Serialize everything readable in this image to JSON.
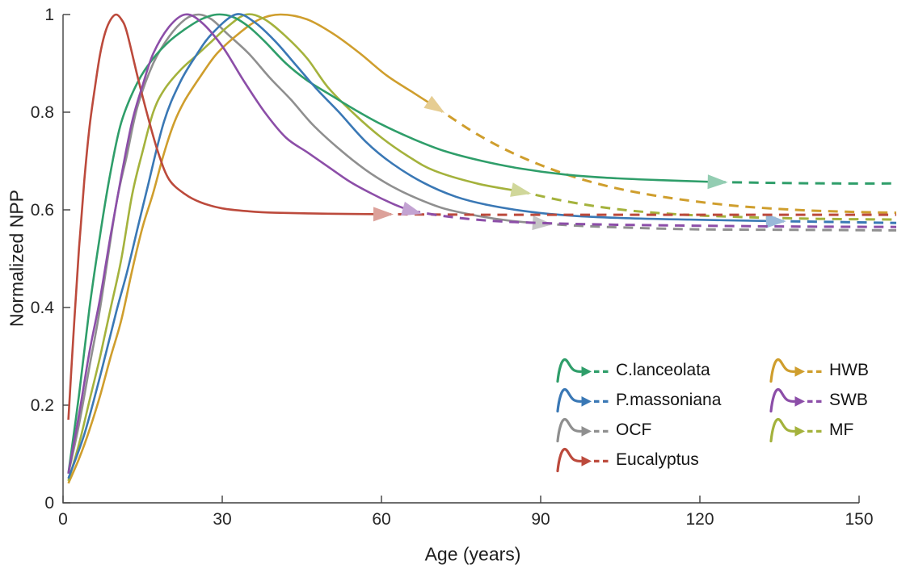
{
  "figure": {
    "xlabel": "Age (years)",
    "ylabel": "Normalized NPP",
    "background": "#ffffff",
    "axis_color": "#3f3f3f",
    "tick_text_color": "#262626"
  },
  "chart_data": {
    "type": "line",
    "title": "",
    "xlabel": "Age (years)",
    "ylabel": "Normalized NPP",
    "xlim": [
      0,
      150
    ],
    "ylim": [
      0,
      1
    ],
    "xticks": [
      0,
      30,
      60,
      90,
      120,
      150
    ],
    "xtick_labels": [
      "0",
      "30",
      "60",
      "90",
      "120",
      "150"
    ],
    "yticks": [
      0,
      0.2,
      0.4,
      0.6,
      0.8,
      1
    ],
    "ytick_labels": [
      "0",
      "0.2",
      "0.4",
      "0.6",
      "0.8",
      "1"
    ],
    "grid": false,
    "legend_position": "lower right",
    "style_note": "Each curve is solid up to a semi-transparent right-pointing arrow marker, then dashed (extrapolated) beyond it; curves extend slightly past age 150.",
    "series": [
      {
        "name": "C.lanceolata",
        "color": "#2f9e6a",
        "peak_age": 29,
        "arrow": [
          123,
          0.657
        ],
        "final_value": 0.654,
        "points": [
          [
            1,
            0.06
          ],
          [
            3,
            0.22
          ],
          [
            5,
            0.4
          ],
          [
            7,
            0.55
          ],
          [
            9,
            0.68
          ],
          [
            11,
            0.78
          ],
          [
            14,
            0.86
          ],
          [
            17,
            0.91
          ],
          [
            20,
            0.945
          ],
          [
            23,
            0.97
          ],
          [
            26,
            0.99
          ],
          [
            29,
            1.0
          ],
          [
            32,
            0.995
          ],
          [
            35,
            0.975
          ],
          [
            38,
            0.945
          ],
          [
            42,
            0.9
          ],
          [
            46,
            0.865
          ],
          [
            50,
            0.838
          ],
          [
            55,
            0.805
          ],
          [
            60,
            0.775
          ],
          [
            66,
            0.745
          ],
          [
            72,
            0.72
          ],
          [
            79,
            0.7
          ],
          [
            86,
            0.685
          ],
          [
            94,
            0.673
          ],
          [
            102,
            0.666
          ],
          [
            112,
            0.661
          ],
          [
            123,
            0.657
          ],
          [
            135,
            0.655
          ],
          [
            146,
            0.654
          ],
          [
            157,
            0.654
          ]
        ]
      },
      {
        "name": "P.massoniana",
        "color": "#3a78b5",
        "peak_age": 32.5,
        "arrow": [
          134,
          0.577
        ],
        "final_value": 0.573,
        "points": [
          [
            1,
            0.05
          ],
          [
            4,
            0.14
          ],
          [
            7,
            0.26
          ],
          [
            10,
            0.39
          ],
          [
            12,
            0.47
          ],
          [
            14,
            0.56
          ],
          [
            16,
            0.65
          ],
          [
            19,
            0.78
          ],
          [
            22,
            0.86
          ],
          [
            25,
            0.915
          ],
          [
            28,
            0.96
          ],
          [
            32.5,
            1.0
          ],
          [
            36,
            0.985
          ],
          [
            40,
            0.945
          ],
          [
            44,
            0.895
          ],
          [
            48,
            0.845
          ],
          [
            52,
            0.8
          ],
          [
            57,
            0.74
          ],
          [
            62,
            0.695
          ],
          [
            68,
            0.655
          ],
          [
            74,
            0.627
          ],
          [
            80,
            0.61
          ],
          [
            88,
            0.596
          ],
          [
            96,
            0.588
          ],
          [
            106,
            0.583
          ],
          [
            118,
            0.58
          ],
          [
            134,
            0.577
          ],
          [
            146,
            0.575
          ],
          [
            157,
            0.573
          ]
        ]
      },
      {
        "name": "OCF",
        "color": "#8f8f8f",
        "peak_age": 25.5,
        "arrow": [
          90,
          0.572
        ],
        "final_value": 0.558,
        "points": [
          [
            1,
            0.06
          ],
          [
            3,
            0.16
          ],
          [
            5,
            0.28
          ],
          [
            7,
            0.4
          ],
          [
            10,
            0.61
          ],
          [
            12,
            0.71
          ],
          [
            14,
            0.81
          ],
          [
            17,
            0.9
          ],
          [
            20,
            0.955
          ],
          [
            23,
            0.99
          ],
          [
            25.5,
            1.0
          ],
          [
            28,
            0.99
          ],
          [
            31,
            0.96
          ],
          [
            35,
            0.92
          ],
          [
            39,
            0.87
          ],
          [
            43,
            0.825
          ],
          [
            47,
            0.775
          ],
          [
            52,
            0.725
          ],
          [
            57,
            0.682
          ],
          [
            62,
            0.648
          ],
          [
            67,
            0.622
          ],
          [
            72,
            0.602
          ],
          [
            78,
            0.588
          ],
          [
            84,
            0.578
          ],
          [
            90,
            0.572
          ],
          [
            98,
            0.567
          ],
          [
            108,
            0.563
          ],
          [
            120,
            0.56
          ],
          [
            138,
            0.559
          ],
          [
            157,
            0.558
          ]
        ]
      },
      {
        "name": "Eucalyptus",
        "color": "#bc4a3c",
        "peak_age": 10,
        "arrow": [
          60,
          0.591
        ],
        "final_value": 0.59,
        "points": [
          [
            1,
            0.17
          ],
          [
            2,
            0.35
          ],
          [
            3,
            0.52
          ],
          [
            4,
            0.66
          ],
          [
            5,
            0.77
          ],
          [
            6,
            0.85
          ],
          [
            7,
            0.92
          ],
          [
            8,
            0.965
          ],
          [
            9,
            0.99
          ],
          [
            10,
            1.0
          ],
          [
            11,
            0.99
          ],
          [
            12,
            0.965
          ],
          [
            14,
            0.875
          ],
          [
            16,
            0.79
          ],
          [
            18,
            0.715
          ],
          [
            20,
            0.662
          ],
          [
            23,
            0.632
          ],
          [
            26,
            0.615
          ],
          [
            30,
            0.603
          ],
          [
            35,
            0.597
          ],
          [
            40,
            0.594
          ],
          [
            50,
            0.592
          ],
          [
            60,
            0.591
          ],
          [
            80,
            0.59
          ],
          [
            110,
            0.59
          ],
          [
            157,
            0.59
          ]
        ]
      },
      {
        "name": "HWB",
        "color": "#cf9e2d",
        "peak_age": 41,
        "arrow": [
          70,
          0.812
        ],
        "final_value": 0.594,
        "points": [
          [
            1,
            0.04
          ],
          [
            3,
            0.09
          ],
          [
            5,
            0.15
          ],
          [
            7,
            0.22
          ],
          [
            9,
            0.3
          ],
          [
            11,
            0.375
          ],
          [
            13,
            0.475
          ],
          [
            15,
            0.565
          ],
          [
            17,
            0.635
          ],
          [
            19,
            0.715
          ],
          [
            21,
            0.78
          ],
          [
            23,
            0.825
          ],
          [
            26,
            0.875
          ],
          [
            29,
            0.92
          ],
          [
            33,
            0.96
          ],
          [
            37,
            0.99
          ],
          [
            41,
            1.0
          ],
          [
            46,
            0.99
          ],
          [
            51,
            0.96
          ],
          [
            56,
            0.92
          ],
          [
            61,
            0.875
          ],
          [
            66,
            0.84
          ],
          [
            70,
            0.812
          ],
          [
            78,
            0.755
          ],
          [
            86,
            0.71
          ],
          [
            95,
            0.672
          ],
          [
            104,
            0.645
          ],
          [
            114,
            0.625
          ],
          [
            126,
            0.609
          ],
          [
            138,
            0.6
          ],
          [
            148,
            0.596
          ],
          [
            157,
            0.594
          ]
        ]
      },
      {
        "name": "SWB",
        "color": "#8c4ea8",
        "peak_age": 23,
        "arrow": [
          65.5,
          0.598
        ],
        "final_value": 0.565,
        "points": [
          [
            1,
            0.06
          ],
          [
            3,
            0.18
          ],
          [
            5,
            0.31
          ],
          [
            7,
            0.42
          ],
          [
            9,
            0.55
          ],
          [
            11,
            0.67
          ],
          [
            13,
            0.78
          ],
          [
            15,
            0.855
          ],
          [
            17,
            0.92
          ],
          [
            20,
            0.975
          ],
          [
            23,
            1.0
          ],
          [
            26,
            0.985
          ],
          [
            30,
            0.935
          ],
          [
            34,
            0.865
          ],
          [
            38,
            0.8
          ],
          [
            42,
            0.748
          ],
          [
            46,
            0.718
          ],
          [
            50,
            0.688
          ],
          [
            54,
            0.658
          ],
          [
            58,
            0.634
          ],
          [
            62,
            0.613
          ],
          [
            65.5,
            0.598
          ],
          [
            72,
            0.587
          ],
          [
            80,
            0.578
          ],
          [
            90,
            0.573
          ],
          [
            102,
            0.57
          ],
          [
            116,
            0.568
          ],
          [
            136,
            0.566
          ],
          [
            157,
            0.565
          ]
        ]
      },
      {
        "name": "MF",
        "color": "#a4b23c",
        "peak_age": 34.5,
        "arrow": [
          86,
          0.638
        ],
        "final_value": 0.58,
        "points": [
          [
            1,
            0.045
          ],
          [
            3,
            0.12
          ],
          [
            5,
            0.21
          ],
          [
            7,
            0.3
          ],
          [
            9,
            0.4
          ],
          [
            11,
            0.5
          ],
          [
            13,
            0.63
          ],
          [
            15,
            0.72
          ],
          [
            17,
            0.8
          ],
          [
            19,
            0.845
          ],
          [
            22,
            0.885
          ],
          [
            25,
            0.915
          ],
          [
            28,
            0.945
          ],
          [
            31,
            0.975
          ],
          [
            34.5,
            1.0
          ],
          [
            38,
            0.99
          ],
          [
            42,
            0.955
          ],
          [
            46,
            0.91
          ],
          [
            50,
            0.85
          ],
          [
            55,
            0.795
          ],
          [
            60,
            0.748
          ],
          [
            65,
            0.71
          ],
          [
            70,
            0.68
          ],
          [
            78,
            0.654
          ],
          [
            86,
            0.638
          ],
          [
            95,
            0.617
          ],
          [
            104,
            0.602
          ],
          [
            114,
            0.592
          ],
          [
            126,
            0.586
          ],
          [
            140,
            0.582
          ],
          [
            157,
            0.58
          ]
        ]
      }
    ]
  }
}
